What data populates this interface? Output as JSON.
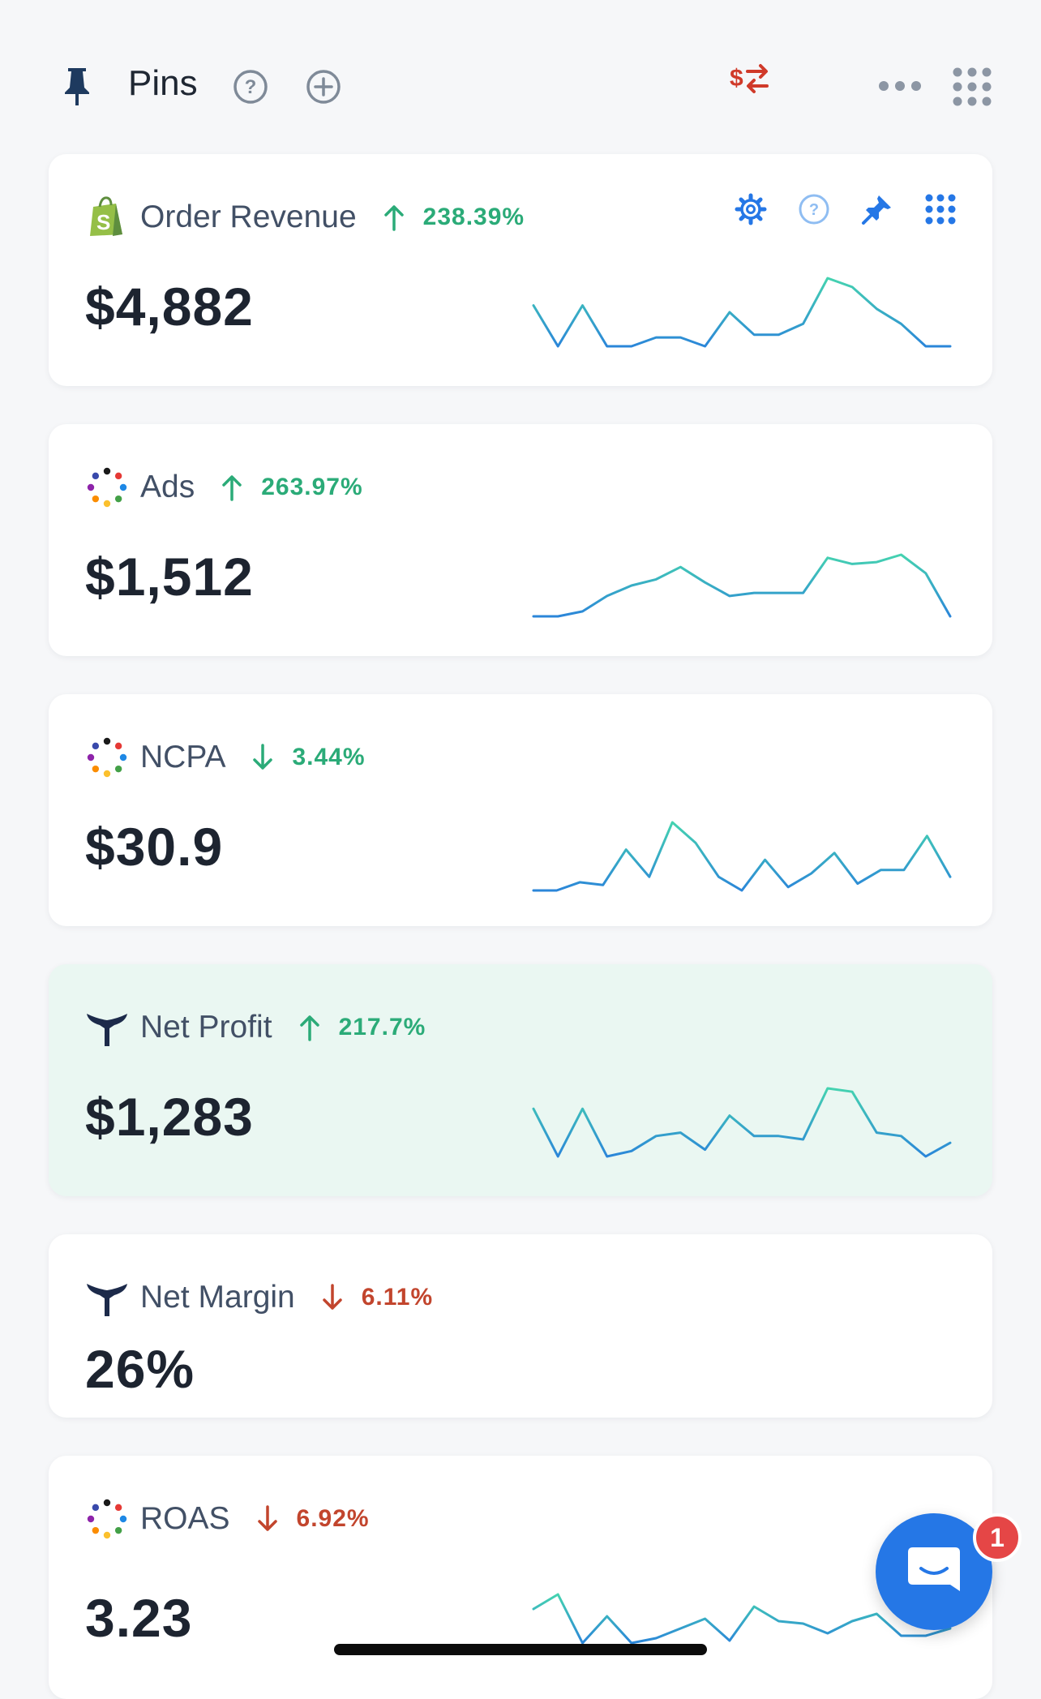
{
  "header": {
    "title": "Pins",
    "icons": [
      "pin-icon",
      "help-icon",
      "add-circle-icon",
      "currency-exchange-icon",
      "more-horizontal-icon",
      "apps-grid-icon"
    ]
  },
  "cards": [
    {
      "name": "Order Revenue",
      "source_icon": "shopify-icon",
      "trend_direction": "up",
      "change": "238.39%",
      "value": "$4,882",
      "tools": [
        "settings-icon",
        "help-icon",
        "pin-icon",
        "drag-grid-icon"
      ],
      "sparkline": [
        0.6,
        0.0,
        0.6,
        0.0,
        0.0,
        0.13,
        0.13,
        0.0,
        0.5,
        0.17,
        0.17,
        0.33,
        1.0,
        0.87,
        0.55,
        0.33,
        0.0,
        0.0
      ]
    },
    {
      "name": "Ads",
      "source_icon": "multicolor-dots-icon",
      "trend_direction": "up",
      "change": "263.97%",
      "value": "$1,512",
      "sparkline": [
        0.0,
        0.0,
        0.08,
        0.33,
        0.5,
        0.6,
        0.8,
        0.55,
        0.33,
        0.38,
        0.38,
        0.38,
        0.95,
        0.85,
        0.88,
        1.0,
        0.7,
        0.0
      ]
    },
    {
      "name": "NCPA",
      "source_icon": "multicolor-dots-icon",
      "trend_direction": "down",
      "change": "3.44%",
      "value": "$30.9",
      "sparkline": [
        0.0,
        0.0,
        0.12,
        0.08,
        0.6,
        0.2,
        1.0,
        0.7,
        0.2,
        0.0,
        0.45,
        0.05,
        0.25,
        0.55,
        0.1,
        0.3,
        0.3,
        0.8,
        0.2
      ]
    },
    {
      "name": "Net Profit",
      "source_icon": "triple-whale-icon",
      "trend_direction": "up",
      "change": "217.7%",
      "value": "$1,283",
      "highlight": true,
      "sparkline": [
        0.7,
        0.0,
        0.7,
        0.0,
        0.08,
        0.3,
        0.35,
        0.1,
        0.6,
        0.3,
        0.3,
        0.25,
        1.0,
        0.95,
        0.35,
        0.3,
        0.0,
        0.2
      ]
    },
    {
      "name": "Net Margin",
      "source_icon": "triple-whale-icon",
      "trend_direction": "down",
      "change": "6.11%",
      "value": "26%"
    },
    {
      "name": "ROAS",
      "source_icon": "multicolor-dots-icon",
      "trend_direction": "down",
      "change": "6.92%",
      "value": "3.23",
      "sparkline": [
        0.7,
        1.0,
        0.0,
        0.55,
        0.0,
        0.1,
        0.3,
        0.5,
        0.05,
        0.75,
        0.45,
        0.4,
        0.2,
        0.45,
        0.6,
        0.15,
        0.15,
        0.3
      ]
    }
  ],
  "chat": {
    "badge_count": "1"
  },
  "colors": {
    "positive": "#2bab78",
    "negative": "#c2452d",
    "spark_start": "#2b86d9",
    "spark_end": "#45d3b0",
    "highlight_bg": "#eaf7f2",
    "accent_blue": "#2577e6"
  }
}
